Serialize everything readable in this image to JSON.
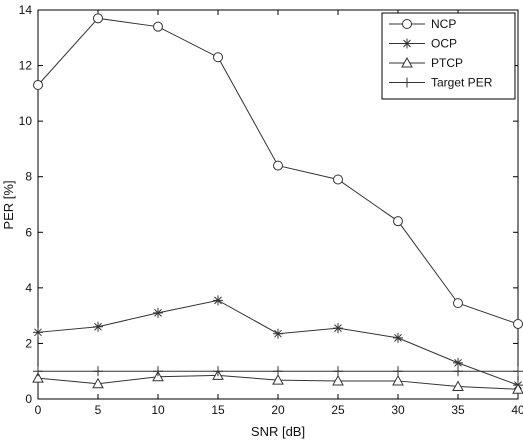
{
  "chart_data": {
    "type": "line",
    "xlabel": "SNR [dB]",
    "ylabel": "PER [%]",
    "xlim": [
      0,
      40
    ],
    "ylim": [
      0,
      14
    ],
    "x_ticks": [
      "0",
      "5",
      "10",
      "15",
      "20",
      "25",
      "30",
      "35",
      "40"
    ],
    "y_ticks": [
      "0",
      "2",
      "4",
      "6",
      "8",
      "10",
      "12",
      "14"
    ],
    "grid": false,
    "legend_position": "top-right",
    "x": [
      0,
      5,
      10,
      15,
      20,
      25,
      30,
      35,
      40
    ],
    "series": [
      {
        "name": "NCP",
        "marker": "circle",
        "values": [
          11.3,
          13.7,
          13.4,
          12.3,
          8.4,
          7.9,
          6.4,
          3.45,
          2.7
        ]
      },
      {
        "name": "OCP",
        "marker": "star",
        "values": [
          2.4,
          2.6,
          3.1,
          3.55,
          2.35,
          2.55,
          2.2,
          1.3,
          0.5
        ]
      },
      {
        "name": "PTCP",
        "marker": "triangle",
        "values": [
          0.75,
          0.55,
          0.8,
          0.85,
          0.68,
          0.65,
          0.65,
          0.45,
          0.35
        ]
      },
      {
        "name": "Target PER",
        "marker": "plus",
        "values": [
          1,
          1,
          1,
          1,
          1,
          1,
          1,
          1,
          1
        ]
      }
    ],
    "colors": {
      "line": "#333333",
      "axis": "#000000",
      "background": "#ffffff"
    }
  }
}
